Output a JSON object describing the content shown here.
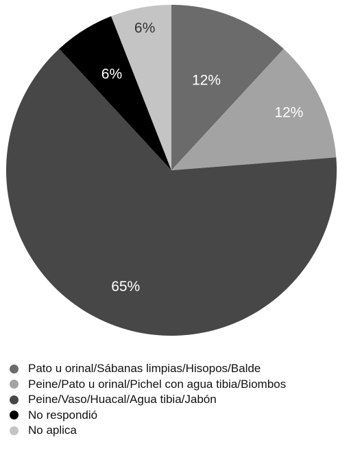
{
  "chart_data": {
    "type": "pie",
    "title": "",
    "slices": [
      {
        "label": "Pato u orinal/Sábanas limpias/Hisopos/Balde",
        "value": 12,
        "value_label": "12%",
        "color": "#6b6b6b",
        "text_color": "#ffffff"
      },
      {
        "label": "Peine/Pato u orinal/Pichel con agua tibia/Biombos",
        "value": 12,
        "value_label": "12%",
        "color": "#a3a3a3",
        "text_color": "#ffffff"
      },
      {
        "label": "Peine/Vaso/Huacal/Agua tibia/Jabón",
        "value": 65,
        "value_label": "65%",
        "color": "#474747",
        "text_color": "#ffffff"
      },
      {
        "label": "No respondió",
        "value": 6,
        "value_label": "6%",
        "color": "#000000",
        "text_color": "#ffffff"
      },
      {
        "label": "No aplica",
        "value": 6,
        "value_label": "6%",
        "color": "#c4c4c4",
        "text_color": "#333333"
      }
    ],
    "legend_position": "bottom"
  }
}
